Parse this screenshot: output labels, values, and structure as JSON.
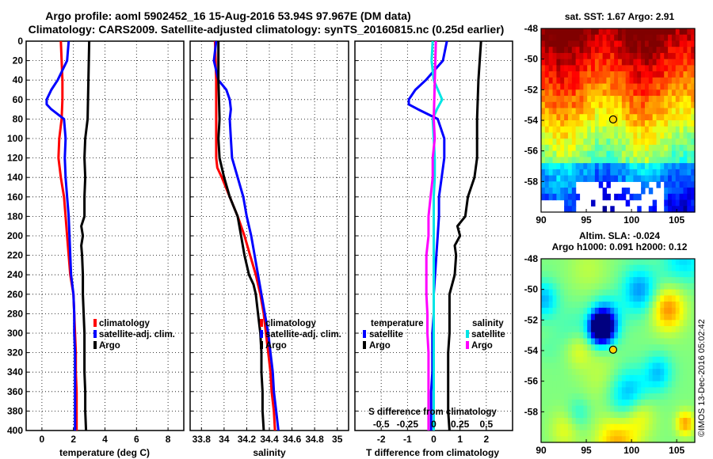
{
  "title_line1": "Argo profile: aoml 5902452_16 15-Aug-2016 53.94S 97.967E (DM data)",
  "title_line2": "Climatology: CARS2009. Satellite-adjusted climatology: synTS_20160815.nc (0.25d earlier)",
  "depth_ticks": [
    0,
    20,
    40,
    60,
    80,
    100,
    120,
    140,
    160,
    180,
    200,
    220,
    240,
    260,
    280,
    300,
    320,
    340,
    360,
    380,
    400
  ],
  "colors": {
    "climatology": "#ff0000",
    "satellite": "#0000ff",
    "argo": "#000000",
    "sal_satellite": "#00e5e5",
    "sal_clim": "#ff00ff"
  },
  "chart_data": [
    {
      "type": "line",
      "name": "temperature",
      "xlabel": "temperature (deg C)",
      "ylabel": "",
      "xlim": [
        -1,
        9
      ],
      "ylim": [
        400,
        0
      ],
      "xticks": [
        "0",
        "2",
        "4",
        "6",
        "8"
      ],
      "xtick_values": [
        0,
        2,
        4,
        6,
        8
      ],
      "legend": [
        "climatology",
        "satellite-adj. clim.",
        "Argo"
      ],
      "series": [
        {
          "name": "climatology",
          "depth": [
            0,
            20,
            40,
            60,
            80,
            100,
            120,
            140,
            160,
            180,
            200,
            220,
            240,
            260,
            280,
            300,
            320,
            340,
            360,
            380,
            400
          ],
          "values": [
            1.2,
            1.25,
            1.3,
            1.3,
            1.25,
            1.1,
            1.05,
            1.2,
            1.4,
            1.5,
            1.6,
            1.7,
            1.8,
            2.0,
            2.05,
            2.1,
            2.15,
            2.15,
            2.2,
            2.2,
            2.2
          ]
        },
        {
          "name": "satellite-adj. clim.",
          "depth": [
            0,
            20,
            40,
            50,
            60,
            65,
            70,
            80,
            100,
            120,
            140,
            160,
            180,
            200,
            220,
            240,
            260,
            280,
            300,
            320,
            340,
            360,
            380,
            400
          ],
          "values": [
            1.7,
            1.6,
            1.0,
            0.6,
            0.3,
            0.3,
            0.6,
            1.4,
            1.5,
            1.45,
            1.5,
            1.6,
            1.7,
            1.75,
            1.8,
            1.85,
            2.0,
            2.05,
            2.05,
            2.1,
            2.1,
            2.1,
            2.1,
            2.1
          ]
        },
        {
          "name": "Argo",
          "depth": [
            0,
            40,
            80,
            100,
            120,
            140,
            160,
            180,
            190,
            200,
            210,
            220,
            240,
            260,
            280,
            300,
            320,
            340,
            360,
            380,
            400
          ],
          "values": [
            3.0,
            2.95,
            2.9,
            2.75,
            2.7,
            2.75,
            2.7,
            2.7,
            2.5,
            2.6,
            2.5,
            2.55,
            2.6,
            2.6,
            2.65,
            2.7,
            2.7,
            2.7,
            2.75,
            2.75,
            2.8
          ]
        }
      ]
    },
    {
      "type": "line",
      "name": "salinity",
      "xlabel": "salinity",
      "ylabel": "",
      "xlim": [
        33.7,
        35.1
      ],
      "ylim": [
        400,
        0
      ],
      "xticks": [
        "33.8",
        "34",
        "34.2",
        "34.4",
        "34.6",
        "34.8",
        "35"
      ],
      "xtick_values": [
        33.8,
        34.0,
        34.2,
        34.4,
        34.6,
        34.8,
        35.0
      ],
      "legend": [
        "climatology",
        "satellite-adj. clim.",
        "Argo"
      ],
      "series": [
        {
          "name": "climatology",
          "depth": [
            0,
            40,
            80,
            120,
            130,
            140,
            160,
            180,
            200,
            220,
            240,
            260,
            280,
            300,
            320,
            340,
            360,
            380,
            400
          ],
          "values": [
            33.92,
            33.93,
            33.93,
            33.93,
            33.94,
            33.98,
            34.05,
            34.12,
            34.18,
            34.23,
            34.28,
            34.32,
            34.35,
            34.37,
            34.39,
            34.41,
            34.42,
            34.44,
            34.45
          ]
        },
        {
          "name": "satellite-adj. clim.",
          "depth": [
            0,
            20,
            40,
            50,
            60,
            70,
            80,
            100,
            120,
            140,
            160,
            180,
            200,
            220,
            240,
            260,
            280,
            300,
            320,
            340,
            360,
            380,
            400
          ],
          "values": [
            33.93,
            33.91,
            33.95,
            34.02,
            34.05,
            34.06,
            34.05,
            34.06,
            34.07,
            34.12,
            34.17,
            34.2,
            34.24,
            34.27,
            34.3,
            34.33,
            34.36,
            34.39,
            34.41,
            34.43,
            34.44,
            34.46,
            34.48
          ]
        },
        {
          "name": "Argo",
          "depth": [
            0,
            40,
            80,
            100,
            120,
            140,
            160,
            180,
            200,
            220,
            240,
            250,
            260,
            280,
            300,
            320,
            340,
            360,
            380,
            400
          ],
          "values": [
            33.95,
            33.95,
            33.96,
            33.95,
            33.96,
            34.0,
            34.05,
            34.12,
            34.15,
            34.18,
            34.22,
            34.26,
            34.28,
            34.3,
            34.32,
            34.33,
            34.33,
            34.34,
            34.34,
            34.35
          ]
        }
      ]
    },
    {
      "type": "line",
      "name": "difference",
      "xlabel": "T difference from climatology",
      "top_axis_label": "S difference from climatology",
      "xlim": [
        -3,
        3
      ],
      "ylim": [
        400,
        0
      ],
      "xticks": [
        "-2",
        "-1",
        "0",
        "1",
        "2"
      ],
      "xtick_values": [
        -2,
        -1,
        0,
        1,
        2
      ],
      "top_ticks": [
        "-0.5",
        "-0.25",
        "0",
        "0.25",
        "0.5"
      ],
      "legend_left_title": "temperature",
      "legend_right_title": "salinity",
      "legend_left": [
        "satellite",
        "Argo"
      ],
      "legend_right": [
        "satellite",
        "Argo"
      ],
      "series": [
        {
          "name": "T satellite",
          "depth": [
            0,
            20,
            40,
            50,
            60,
            65,
            70,
            80,
            100,
            120,
            140,
            160,
            180,
            200,
            220,
            240,
            260,
            280,
            300,
            320,
            340,
            360,
            380,
            400
          ],
          "values": [
            0.5,
            0.35,
            -0.3,
            -0.7,
            -0.95,
            -0.95,
            -0.6,
            0.15,
            0.4,
            0.4,
            0.3,
            0.2,
            0.2,
            0.15,
            0.1,
            0.05,
            0.0,
            0.0,
            -0.05,
            -0.05,
            -0.05,
            -0.1,
            -0.1,
            -0.1
          ]
        },
        {
          "name": "T Argo",
          "depth": [
            0,
            40,
            80,
            100,
            120,
            140,
            160,
            180,
            190,
            200,
            210,
            220,
            240,
            260,
            280,
            300,
            320,
            340,
            360,
            380,
            400
          ],
          "values": [
            1.8,
            1.7,
            1.65,
            1.65,
            1.65,
            1.55,
            1.3,
            1.2,
            0.9,
            1.0,
            0.8,
            0.85,
            0.8,
            0.6,
            0.6,
            0.6,
            0.55,
            0.55,
            0.55,
            0.55,
            0.6
          ]
        },
        {
          "name": "S satellite",
          "depth": [
            0,
            20,
            40,
            60,
            70,
            80,
            100,
            120,
            140,
            160,
            180,
            200,
            220,
            240,
            260,
            280,
            300,
            320,
            340,
            360,
            380,
            400
          ],
          "values": [
            -0.01,
            -0.02,
            0.0,
            0.08,
            0.03,
            -0.01,
            0.0,
            0.01,
            0.01,
            0.0,
            0.0,
            0.0,
            0.0,
            0.0,
            0.0,
            0.0,
            0.0,
            0.0,
            0.0,
            0.0,
            0.0,
            0.0
          ]
        },
        {
          "name": "S Argo",
          "depth": [
            0,
            80,
            100,
            120,
            140,
            160,
            180,
            200,
            220,
            240,
            260,
            280,
            300,
            320,
            340,
            360,
            380,
            400
          ],
          "values": [
            0.02,
            0.0,
            0.01,
            -0.01,
            -0.01,
            -0.03,
            -0.05,
            -0.05,
            -0.07,
            -0.07,
            -0.07,
            -0.06,
            -0.06,
            -0.05,
            -0.05,
            -0.05,
            -0.05,
            -0.05
          ]
        }
      ]
    },
    {
      "type": "heatmap",
      "name": "sst-map",
      "title": "sat. SST: 1.67 Argo: 2.91",
      "xticks": [
        "90",
        "95",
        "100",
        "105"
      ],
      "xtick_values": [
        90,
        95,
        100,
        105
      ],
      "yticks": [
        "-48",
        "-50",
        "-52",
        "-54",
        "-56",
        "-58"
      ],
      "ytick_values": [
        -48,
        -50,
        -52,
        -54,
        -56,
        -58
      ],
      "xlim": [
        90,
        107
      ],
      "ylim": [
        -60,
        -48
      ],
      "marker": {
        "lon": 97.967,
        "lat": -53.94
      }
    },
    {
      "type": "heatmap",
      "name": "sla-map",
      "title_line1": "Altim. SLA: -0.024",
      "title_line2": "Argo h1000: 0.091 h2000: 0.12",
      "xticks": [
        "90",
        "95",
        "100",
        "105"
      ],
      "xtick_values": [
        90,
        95,
        100,
        105
      ],
      "yticks": [
        "-48",
        "-50",
        "-52",
        "-54",
        "-56",
        "-58"
      ],
      "ytick_values": [
        -48,
        -50,
        -52,
        -54,
        -56,
        -58
      ],
      "xlim": [
        90,
        107
      ],
      "ylim": [
        -60,
        -48
      ],
      "marker": {
        "lon": 97.967,
        "lat": -53.94
      }
    }
  ],
  "credit": "©IMOS 13-Dec-2016 05:02:42"
}
